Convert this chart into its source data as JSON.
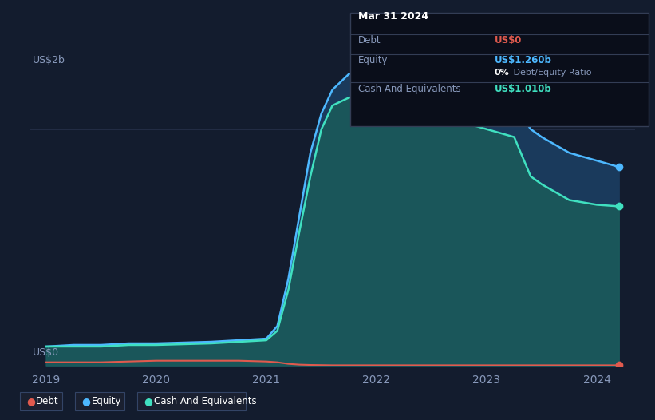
{
  "background_color": "#131c2e",
  "plot_bg_color": "#131c2e",
  "grid_color": "#2a3550",
  "ylabel": "US$2b",
  "y0label": "US$0",
  "x_ticks": [
    2019,
    2020,
    2021,
    2022,
    2023,
    2024
  ],
  "ylim": [
    0,
    2.0
  ],
  "debt_color": "#e05a4e",
  "equity_color": "#4db8ff",
  "cash_color": "#40e0c0",
  "equity_fill_color": "#1a3a5c",
  "cash_fill_color": "#1a5c5a",
  "tooltip_bg": "#0a0e1a",
  "tooltip_border": "#2a3550",
  "tooltip_title": "Mar 31 2024",
  "tooltip_debt_label": "Debt",
  "tooltip_debt_value": "US$0",
  "tooltip_equity_label": "Equity",
  "tooltip_equity_value": "US$1.260b",
  "tooltip_ratio": "0% Debt/Equity Ratio",
  "tooltip_cash_label": "Cash And Equivalents",
  "tooltip_cash_value": "US$1.010b",
  "years": [
    2019.0,
    2019.25,
    2019.5,
    2019.75,
    2020.0,
    2020.25,
    2020.5,
    2020.75,
    2021.0,
    2021.1,
    2021.2,
    2021.3,
    2021.4,
    2021.5,
    2021.6,
    2021.75,
    2022.0,
    2022.25,
    2022.5,
    2022.75,
    2023.0,
    2023.25,
    2023.4,
    2023.5,
    2023.75,
    2024.0,
    2024.2
  ],
  "debt": [
    0.02,
    0.02,
    0.02,
    0.025,
    0.03,
    0.03,
    0.03,
    0.03,
    0.025,
    0.02,
    0.01,
    0.005,
    0.003,
    0.002,
    0.001,
    0.001,
    0.001,
    0.001,
    0.001,
    0.001,
    0.001,
    0.001,
    0.001,
    0.001,
    0.001,
    0.001,
    0.001
  ],
  "equity": [
    0.12,
    0.13,
    0.13,
    0.14,
    0.14,
    0.145,
    0.15,
    0.16,
    0.17,
    0.25,
    0.55,
    0.95,
    1.35,
    1.6,
    1.75,
    1.85,
    1.9,
    1.85,
    1.8,
    1.75,
    1.7,
    1.65,
    1.5,
    1.45,
    1.35,
    1.3,
    1.26
  ],
  "cash": [
    0.12,
    0.12,
    0.12,
    0.13,
    0.13,
    0.135,
    0.14,
    0.15,
    0.16,
    0.22,
    0.48,
    0.85,
    1.2,
    1.5,
    1.65,
    1.7,
    1.72,
    1.65,
    1.6,
    1.55,
    1.5,
    1.45,
    1.2,
    1.15,
    1.05,
    1.02,
    1.01
  ],
  "legend_labels": [
    "Debt",
    "Equity",
    "Cash And Equivalents"
  ]
}
